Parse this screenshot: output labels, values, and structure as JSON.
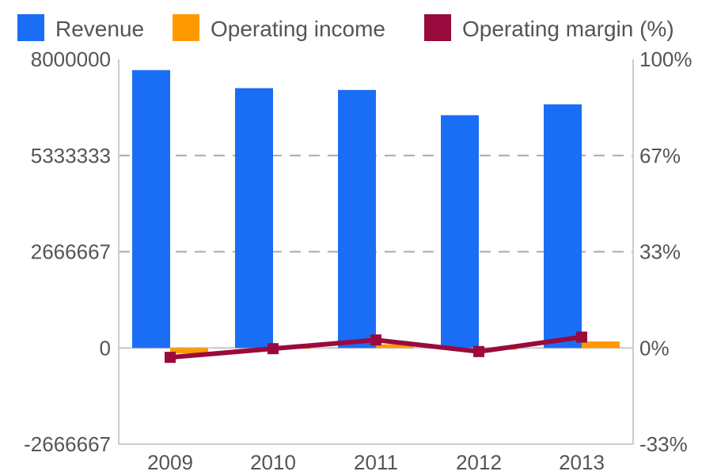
{
  "chart_data": {
    "type": "bar",
    "categories": [
      "2009",
      "2010",
      "2011",
      "2012",
      "2013"
    ],
    "series": [
      {
        "name": "Revenue",
        "type": "bar",
        "axis": "left",
        "color": "#1a6ef5",
        "values": [
          7700000,
          7200000,
          7150000,
          6450000,
          6750000
        ]
      },
      {
        "name": "Operating income",
        "type": "bar",
        "axis": "left",
        "color": "#ff9900",
        "values": [
          -150000,
          20000,
          100000,
          -50000,
          180000
        ]
      },
      {
        "name": "Operating margin (%)",
        "type": "line",
        "axis": "right",
        "color": "#9b0a3c",
        "values": [
          -3,
          0,
          3,
          -1,
          4
        ]
      }
    ],
    "left_axis": {
      "ylim": [
        -2666667,
        8000000
      ],
      "ticks": [
        "8000000",
        "5333333",
        "2666667",
        "0",
        "-2666667"
      ]
    },
    "right_axis": {
      "ylim": [
        -33,
        100
      ],
      "ticks": [
        "100%",
        "67%",
        "33%",
        "0%",
        "-33%"
      ]
    },
    "grid": true,
    "legend_position": "top"
  }
}
